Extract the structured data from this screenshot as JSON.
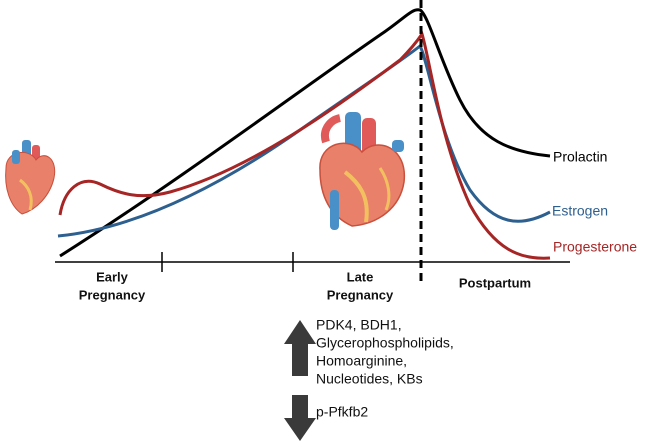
{
  "curves": [
    {
      "label": "Prolactin"
    },
    {
      "label": "Estrogen"
    },
    {
      "label": "Progesterone"
    }
  ],
  "phases": [
    {
      "lines": [
        "Early",
        "Pregnancy"
      ]
    },
    {
      "lines": [
        "Late",
        "Pregnancy"
      ]
    },
    {
      "lines": [
        "Postpartum"
      ]
    }
  ],
  "up_regulated": {
    "lines": [
      "PDK4, BDH1,",
      "Glycerophospholipids,",
      "Homoarginine,",
      "Nucleotides, KBs"
    ]
  },
  "down_regulated": {
    "lines": [
      "p-Pfkfb2"
    ]
  }
}
